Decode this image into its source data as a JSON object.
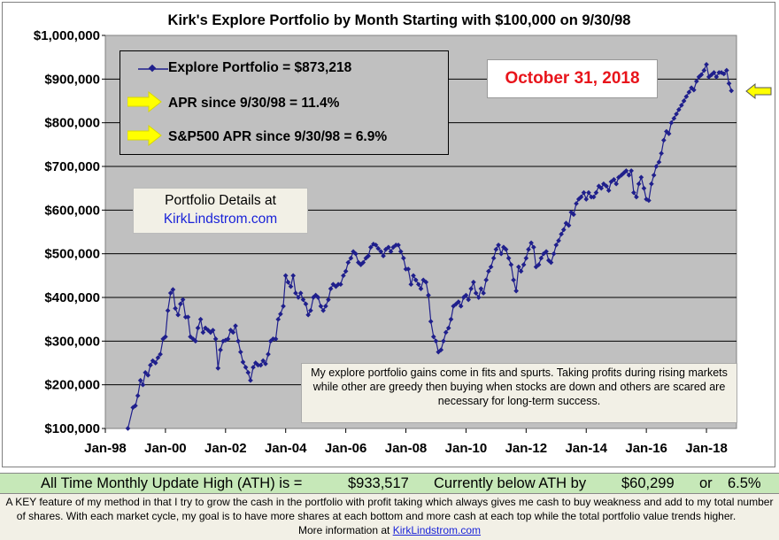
{
  "chart_data": {
    "type": "line",
    "title": "Kirk's Explore Portfolio by Month Starting with $100,000 on 9/30/98",
    "ylim": [
      100000,
      1000000
    ],
    "y_ticks": [
      "$100,000",
      "$200,000",
      "$300,000",
      "$400,000",
      "$500,000",
      "$600,000",
      "$700,000",
      "$800,000",
      "$900,000",
      "$1,000,000"
    ],
    "x_ticks": [
      "Jan-98",
      "Jan-00",
      "Jan-02",
      "Jan-04",
      "Jan-06",
      "Jan-08",
      "Jan-10",
      "Jan-12",
      "Jan-14",
      "Jan-16",
      "Jan-18"
    ],
    "x_start_year": 1998,
    "x_end_year": 2019,
    "grid": true,
    "legend_position": "top-left",
    "series": [
      {
        "name": "Explore Portfolio  =  $873,218",
        "color": "#1f1f8c",
        "points": [
          [
            1998.75,
            100000
          ],
          [
            1998.92,
            148000
          ],
          [
            1999.0,
            152000
          ],
          [
            1999.08,
            175000
          ],
          [
            1999.17,
            210000
          ],
          [
            1999.25,
            200000
          ],
          [
            1999.33,
            228000
          ],
          [
            1999.42,
            222000
          ],
          [
            1999.5,
            245000
          ],
          [
            1999.58,
            255000
          ],
          [
            1999.67,
            250000
          ],
          [
            1999.75,
            262000
          ],
          [
            1999.83,
            270000
          ],
          [
            1999.92,
            305000
          ],
          [
            2000.0,
            310000
          ],
          [
            2000.08,
            370000
          ],
          [
            2000.17,
            410000
          ],
          [
            2000.25,
            418000
          ],
          [
            2000.33,
            375000
          ],
          [
            2000.42,
            360000
          ],
          [
            2000.5,
            385000
          ],
          [
            2000.58,
            395000
          ],
          [
            2000.67,
            355000
          ],
          [
            2000.75,
            355000
          ],
          [
            2000.83,
            310000
          ],
          [
            2000.92,
            305000
          ],
          [
            2001.0,
            300000
          ],
          [
            2001.08,
            330000
          ],
          [
            2001.17,
            350000
          ],
          [
            2001.25,
            320000
          ],
          [
            2001.33,
            330000
          ],
          [
            2001.42,
            325000
          ],
          [
            2001.5,
            320000
          ],
          [
            2001.58,
            325000
          ],
          [
            2001.67,
            305000
          ],
          [
            2001.75,
            238000
          ],
          [
            2001.83,
            280000
          ],
          [
            2001.92,
            300000
          ],
          [
            2002.0,
            302000
          ],
          [
            2002.08,
            305000
          ],
          [
            2002.17,
            325000
          ],
          [
            2002.25,
            320000
          ],
          [
            2002.33,
            335000
          ],
          [
            2002.42,
            300000
          ],
          [
            2002.5,
            275000
          ],
          [
            2002.58,
            252000
          ],
          [
            2002.67,
            240000
          ],
          [
            2002.75,
            228000
          ],
          [
            2002.83,
            210000
          ],
          [
            2002.92,
            240000
          ],
          [
            2003.0,
            250000
          ],
          [
            2003.08,
            245000
          ],
          [
            2003.17,
            245000
          ],
          [
            2003.25,
            255000
          ],
          [
            2003.33,
            248000
          ],
          [
            2003.42,
            270000
          ],
          [
            2003.5,
            300000
          ],
          [
            2003.58,
            305000
          ],
          [
            2003.67,
            305000
          ],
          [
            2003.75,
            350000
          ],
          [
            2003.83,
            362000
          ],
          [
            2003.92,
            380000
          ],
          [
            2004.0,
            450000
          ],
          [
            2004.08,
            435000
          ],
          [
            2004.17,
            425000
          ],
          [
            2004.25,
            450000
          ],
          [
            2004.33,
            410000
          ],
          [
            2004.42,
            400000
          ],
          [
            2004.5,
            410000
          ],
          [
            2004.58,
            395000
          ],
          [
            2004.67,
            385000
          ],
          [
            2004.75,
            360000
          ],
          [
            2004.83,
            370000
          ],
          [
            2004.92,
            400000
          ],
          [
            2005.0,
            405000
          ],
          [
            2005.08,
            400000
          ],
          [
            2005.17,
            380000
          ],
          [
            2005.25,
            370000
          ],
          [
            2005.33,
            380000
          ],
          [
            2005.42,
            395000
          ],
          [
            2005.5,
            420000
          ],
          [
            2005.58,
            430000
          ],
          [
            2005.67,
            425000
          ],
          [
            2005.75,
            430000
          ],
          [
            2005.83,
            430000
          ],
          [
            2005.92,
            450000
          ],
          [
            2006.0,
            460000
          ],
          [
            2006.08,
            480000
          ],
          [
            2006.17,
            490000
          ],
          [
            2006.25,
            505000
          ],
          [
            2006.33,
            500000
          ],
          [
            2006.42,
            480000
          ],
          [
            2006.5,
            475000
          ],
          [
            2006.58,
            480000
          ],
          [
            2006.67,
            490000
          ],
          [
            2006.75,
            495000
          ],
          [
            2006.83,
            515000
          ],
          [
            2006.92,
            522000
          ],
          [
            2007.0,
            520000
          ],
          [
            2007.08,
            512000
          ],
          [
            2007.17,
            505000
          ],
          [
            2007.25,
            495000
          ],
          [
            2007.33,
            510000
          ],
          [
            2007.42,
            515000
          ],
          [
            2007.5,
            505000
          ],
          [
            2007.58,
            515000
          ],
          [
            2007.67,
            520000
          ],
          [
            2007.75,
            520000
          ],
          [
            2007.83,
            505000
          ],
          [
            2007.92,
            490000
          ],
          [
            2008.0,
            465000
          ],
          [
            2008.08,
            465000
          ],
          [
            2008.17,
            430000
          ],
          [
            2008.25,
            450000
          ],
          [
            2008.33,
            440000
          ],
          [
            2008.42,
            430000
          ],
          [
            2008.5,
            420000
          ],
          [
            2008.58,
            440000
          ],
          [
            2008.67,
            435000
          ],
          [
            2008.75,
            405000
          ],
          [
            2008.83,
            345000
          ],
          [
            2008.92,
            310000
          ],
          [
            2009.0,
            300000
          ],
          [
            2009.08,
            275000
          ],
          [
            2009.17,
            280000
          ],
          [
            2009.25,
            300000
          ],
          [
            2009.33,
            320000
          ],
          [
            2009.42,
            330000
          ],
          [
            2009.5,
            350000
          ],
          [
            2009.58,
            380000
          ],
          [
            2009.67,
            385000
          ],
          [
            2009.75,
            390000
          ],
          [
            2009.83,
            380000
          ],
          [
            2009.92,
            400000
          ],
          [
            2010.0,
            405000
          ],
          [
            2010.08,
            395000
          ],
          [
            2010.17,
            420000
          ],
          [
            2010.25,
            435000
          ],
          [
            2010.33,
            410000
          ],
          [
            2010.42,
            400000
          ],
          [
            2010.5,
            420000
          ],
          [
            2010.58,
            410000
          ],
          [
            2010.67,
            440000
          ],
          [
            2010.75,
            460000
          ],
          [
            2010.83,
            470000
          ],
          [
            2010.92,
            490000
          ],
          [
            2011.0,
            510000
          ],
          [
            2011.08,
            520000
          ],
          [
            2011.17,
            500000
          ],
          [
            2011.25,
            515000
          ],
          [
            2011.33,
            510000
          ],
          [
            2011.42,
            490000
          ],
          [
            2011.5,
            475000
          ],
          [
            2011.58,
            440000
          ],
          [
            2011.67,
            415000
          ],
          [
            2011.75,
            470000
          ],
          [
            2011.83,
            460000
          ],
          [
            2011.92,
            475000
          ],
          [
            2012.0,
            490000
          ],
          [
            2012.08,
            510000
          ],
          [
            2012.17,
            525000
          ],
          [
            2012.25,
            515000
          ],
          [
            2012.33,
            470000
          ],
          [
            2012.42,
            475000
          ],
          [
            2012.5,
            490000
          ],
          [
            2012.58,
            500000
          ],
          [
            2012.67,
            505000
          ],
          [
            2012.75,
            485000
          ],
          [
            2012.83,
            480000
          ],
          [
            2012.92,
            500000
          ],
          [
            2013.0,
            520000
          ],
          [
            2013.08,
            530000
          ],
          [
            2013.17,
            545000
          ],
          [
            2013.25,
            555000
          ],
          [
            2013.33,
            570000
          ],
          [
            2013.42,
            565000
          ],
          [
            2013.5,
            595000
          ],
          [
            2013.58,
            590000
          ],
          [
            2013.67,
            615000
          ],
          [
            2013.75,
            625000
          ],
          [
            2013.83,
            630000
          ],
          [
            2013.92,
            640000
          ],
          [
            2014.0,
            625000
          ],
          [
            2014.08,
            640000
          ],
          [
            2014.17,
            630000
          ],
          [
            2014.25,
            630000
          ],
          [
            2014.33,
            640000
          ],
          [
            2014.42,
            655000
          ],
          [
            2014.5,
            650000
          ],
          [
            2014.58,
            660000
          ],
          [
            2014.67,
            655000
          ],
          [
            2014.75,
            645000
          ],
          [
            2014.83,
            665000
          ],
          [
            2014.92,
            670000
          ],
          [
            2015.0,
            660000
          ],
          [
            2015.08,
            675000
          ],
          [
            2015.17,
            680000
          ],
          [
            2015.25,
            685000
          ],
          [
            2015.33,
            690000
          ],
          [
            2015.42,
            680000
          ],
          [
            2015.5,
            690000
          ],
          [
            2015.58,
            640000
          ],
          [
            2015.67,
            630000
          ],
          [
            2015.75,
            660000
          ],
          [
            2015.83,
            675000
          ],
          [
            2015.92,
            650000
          ],
          [
            2016.0,
            625000
          ],
          [
            2016.08,
            622000
          ],
          [
            2016.17,
            660000
          ],
          [
            2016.25,
            680000
          ],
          [
            2016.33,
            700000
          ],
          [
            2016.42,
            710000
          ],
          [
            2016.5,
            730000
          ],
          [
            2016.58,
            760000
          ],
          [
            2016.67,
            780000
          ],
          [
            2016.75,
            775000
          ],
          [
            2016.83,
            800000
          ],
          [
            2016.92,
            810000
          ],
          [
            2017.0,
            820000
          ],
          [
            2017.08,
            830000
          ],
          [
            2017.17,
            840000
          ],
          [
            2017.25,
            850000
          ],
          [
            2017.33,
            860000
          ],
          [
            2017.42,
            870000
          ],
          [
            2017.5,
            880000
          ],
          [
            2017.58,
            875000
          ],
          [
            2017.67,
            895000
          ],
          [
            2017.75,
            905000
          ],
          [
            2017.83,
            910000
          ],
          [
            2017.92,
            920000
          ],
          [
            2018.0,
            933517
          ],
          [
            2018.08,
            905000
          ],
          [
            2018.17,
            910000
          ],
          [
            2018.25,
            915000
          ],
          [
            2018.33,
            905000
          ],
          [
            2018.42,
            915000
          ],
          [
            2018.5,
            915000
          ],
          [
            2018.58,
            912000
          ],
          [
            2018.67,
            920000
          ],
          [
            2018.75,
            890000
          ],
          [
            2018.83,
            873218
          ]
        ]
      }
    ]
  },
  "legend": {
    "portfolio": "Explore Portfolio  =  $873,218",
    "apr": "APR since 9/30/98  =  11.4%",
    "sp_apr": "S&P500 APR since 9/30/98  =  6.9%"
  },
  "date_label": "October 31, 2018",
  "details": {
    "line1": "Portfolio Details at",
    "link": "KirkLindstrom.com"
  },
  "note": "My explore portfolio gains come in fits and spurts. Taking profits during rising markets while other are greedy then buying when stocks are down and others are scared are necessary for long-term success.",
  "ath": {
    "label": "All Time Monthly Update High (ATH) is =",
    "value": "$933,517",
    "below_label": "Currently below ATH by",
    "below_amount": "$60,299",
    "or": "or",
    "below_pct": "6.5%"
  },
  "footer": {
    "text": "A KEY feature of my method in that I try to grow the cash in the portfolio with profit taking which always gives me cash to buy weakness and add to my total number of shares.  With each market cycle, my goal is to have more shares at each bottom and more cash at each top while the total portfolio value trends higher.",
    "more": "More information at",
    "link": "KirkLindstrom.com"
  },
  "colors": {
    "plot_bg": "#c0c0c0",
    "line": "#1f1f8c",
    "arrow": "#ffff00",
    "date_text": "#e8141b",
    "ath_bg": "#c6e8b8"
  }
}
